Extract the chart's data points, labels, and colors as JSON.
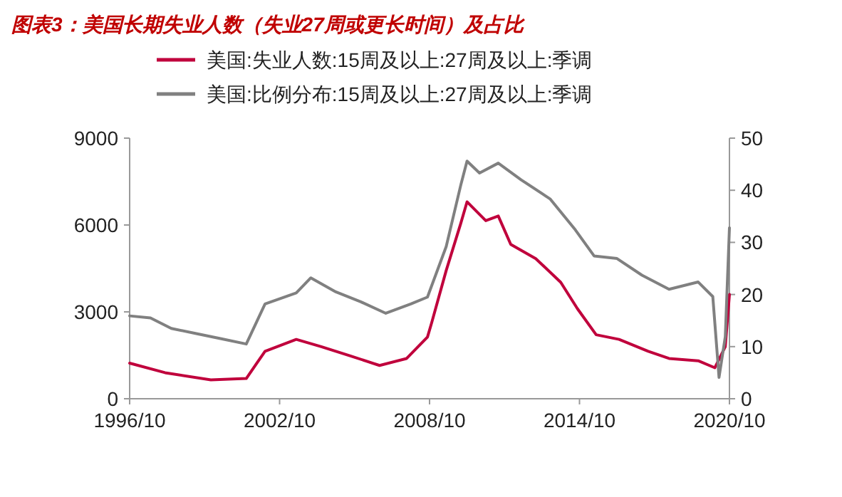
{
  "chart_data": {
    "type": "line",
    "title": "图表3：美国长期失业人数（失业27周或更长时间）及占比",
    "xlim": [
      "1996-10",
      "2020-10"
    ],
    "xticks": [
      {
        "value": "1996-10",
        "label": "1996/10"
      },
      {
        "value": "2002-10",
        "label": "2002/10"
      },
      {
        "value": "2008-10",
        "label": "2008/10"
      },
      {
        "value": "2014-10",
        "label": "2014/10"
      },
      {
        "value": "2020-10",
        "label": "2020/10"
      }
    ],
    "ylim": [
      0,
      9000
    ],
    "yticks": [
      0,
      3000,
      6000,
      9000
    ],
    "y2lim": [
      0,
      50
    ],
    "y2ticks": [
      0,
      10,
      20,
      30,
      40,
      50
    ],
    "legend": "top",
    "grid": false,
    "series": [
      {
        "name": "美国:失业人数:15周及以上:27周及以上:季调",
        "color": "#c0003c",
        "x": [
          "1996-10",
          "1998-03",
          "2000-01",
          "2001-06",
          "2002-03",
          "2003-06",
          "2004-06",
          "2005-08",
          "2006-10",
          "2007-11",
          "2008-09",
          "2008-11",
          "2009-06",
          "2010-01",
          "2010-04",
          "2011-01",
          "2011-07",
          "2012-01",
          "2013-01",
          "2014-01",
          "2014-09",
          "2015-06",
          "2016-05",
          "2017-07",
          "2018-05",
          "2019-07",
          "2020-03",
          "2020-08",
          "2020-10"
        ],
        "values": [
          1230,
          900,
          650,
          700,
          1640,
          2050,
          1800,
          1480,
          1150,
          1390,
          2130,
          2620,
          4430,
          6060,
          6800,
          6150,
          6310,
          5330,
          4840,
          4020,
          3110,
          2210,
          2050,
          1640,
          1390,
          1310,
          1070,
          1800,
          3600
        ]
      },
      {
        "name": "美国:比例分布:15周及以上:27周及以上:季调",
        "color": "#808080",
        "axis": "y2",
        "x": [
          "1996-10",
          "1997-08",
          "1998-06",
          "1999-06",
          "2000-06",
          "2001-06",
          "2002-03",
          "2003-06",
          "2004-01",
          "2005-01",
          "2006-01",
          "2007-01",
          "2008-01",
          "2008-09",
          "2009-06",
          "2010-01",
          "2010-04",
          "2010-10",
          "2011-07",
          "2012-06",
          "2013-08",
          "2014-08",
          "2015-05",
          "2016-04",
          "2017-04",
          "2018-05",
          "2019-07",
          "2020-02",
          "2020-05",
          "2020-08",
          "2020-10"
        ],
        "values": [
          15.9,
          15.5,
          13.5,
          12.5,
          11.5,
          10.5,
          18.2,
          20.3,
          23.2,
          20.5,
          18.6,
          16.4,
          18.2,
          19.5,
          29.2,
          41,
          45.6,
          43.3,
          45.2,
          42,
          38.3,
          32.4,
          27.4,
          26.9,
          23.7,
          21,
          22.4,
          19.6,
          4.1,
          11.9,
          32.8
        ]
      }
    ]
  }
}
